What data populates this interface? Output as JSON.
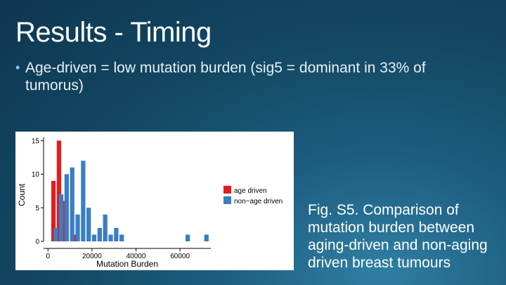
{
  "slide": {
    "title": "Results - Timing",
    "bullet": "Age-driven = low mutation burden (sig5 = dominant in 33% of tumorus)",
    "caption": "Fig. S5. Comparison of mutation burden between aging-driven and non-aging driven breast tumours"
  },
  "chart_data": {
    "type": "bar",
    "xlabel": "Mutation Burden",
    "ylabel": "Count",
    "xlim": [
      -2000,
      74000
    ],
    "ylim": [
      0,
      15.5
    ],
    "xticks": [
      0,
      20000,
      40000,
      60000
    ],
    "xtick_labels": [
      "0",
      "20000",
      "40000",
      "60000"
    ],
    "yticks": [
      0,
      5,
      10,
      15
    ],
    "ytick_labels": [
      "0",
      "5",
      "10",
      "15"
    ],
    "grid": false,
    "legend_position": "right",
    "series": [
      {
        "name": "age driven",
        "color": "#e41a1c",
        "x": [
          2500,
          5000,
          7500,
          12500
        ],
        "values": [
          9,
          15,
          6,
          1
        ]
      },
      {
        "name": "non−age driven",
        "color": "#3a7ec3",
        "x": [
          3500,
          6000,
          8500,
          11000,
          13500,
          16000,
          18500,
          21000,
          23500,
          26000,
          28500,
          31000,
          33500,
          63500,
          72000
        ],
        "values": [
          2,
          7,
          10,
          11,
          4,
          12,
          5,
          1,
          2,
          4,
          1,
          2,
          1,
          1,
          1
        ]
      }
    ],
    "bin_width": 2000
  }
}
